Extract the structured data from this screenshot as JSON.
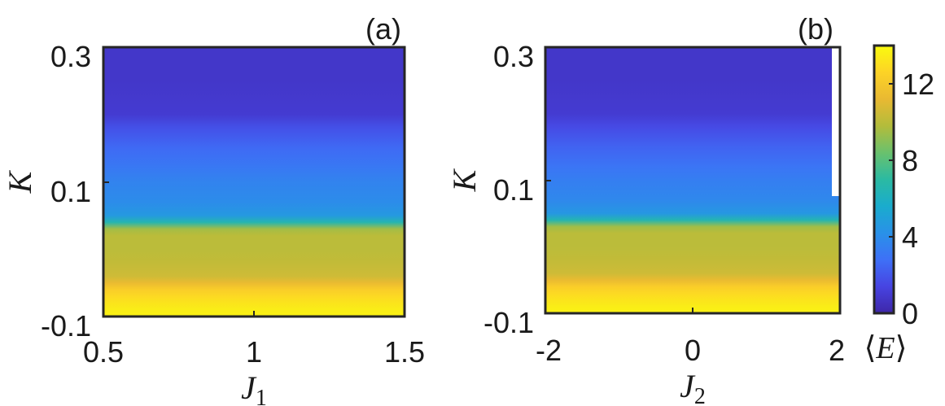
{
  "chart_data": [
    {
      "type": "heatmap",
      "panel_label": "(a)",
      "x_var": "J",
      "x_sub": "1",
      "y_var": "K",
      "x_ticks": [
        "0.5",
        "1",
        "1.5"
      ],
      "y_ticks": [
        "0.3",
        "0.1",
        "-0.1"
      ],
      "xlim": [
        0.5,
        1.5
      ],
      "ylim": [
        -0.1,
        0.3
      ],
      "k_values": [
        0.3,
        0.25,
        0.2,
        0.18,
        0.15,
        0.12,
        0.1,
        0.07,
        0.05,
        0.04,
        0.03,
        0.02,
        0.0,
        -0.02,
        -0.04,
        -0.05,
        -0.06,
        -0.07,
        -0.08,
        -0.09,
        -0.1
      ],
      "mean_E": [
        0.8,
        0.8,
        1.0,
        1.8,
        2.6,
        3.2,
        3.6,
        4.0,
        4.6,
        6.5,
        9.5,
        10.0,
        10.0,
        10.2,
        10.5,
        11.3,
        12.3,
        12.8,
        13.2,
        13.5,
        13.7
      ]
    },
    {
      "type": "heatmap",
      "panel_label": "(b)",
      "x_var": "J",
      "x_sub": "2",
      "y_var": "K",
      "x_ticks": [
        "-2",
        "0",
        "2"
      ],
      "y_ticks": [
        "0.3",
        "0.1",
        "-0.1"
      ],
      "xlim": [
        -2,
        2
      ],
      "ylim": [
        -0.1,
        0.3
      ],
      "k_values": [
        0.3,
        0.25,
        0.2,
        0.18,
        0.15,
        0.12,
        0.1,
        0.07,
        0.05,
        0.04,
        0.03,
        0.02,
        0.0,
        -0.02,
        -0.04,
        -0.05,
        -0.06,
        -0.07,
        -0.08,
        -0.09,
        -0.1
      ],
      "mean_E": [
        0.8,
        0.8,
        1.0,
        1.6,
        2.4,
        3.0,
        3.4,
        3.8,
        4.5,
        6.5,
        9.5,
        10.0,
        10.0,
        10.2,
        10.5,
        11.3,
        12.3,
        12.8,
        13.2,
        13.5,
        13.7
      ]
    }
  ],
  "colorbar": {
    "label_var": "E",
    "ticks": [
      "12",
      "8",
      "4",
      "0"
    ],
    "tick_values": [
      12,
      8,
      4,
      0
    ],
    "range": [
      0,
      14
    ],
    "colormap": [
      "#3e26a8",
      "#4744e2",
      "#3e70f7",
      "#2991e8",
      "#1aaccd",
      "#2bbaa2",
      "#6ac16d",
      "#b3bc3b",
      "#e9b932",
      "#fdd326",
      "#f9fb0e"
    ]
  }
}
